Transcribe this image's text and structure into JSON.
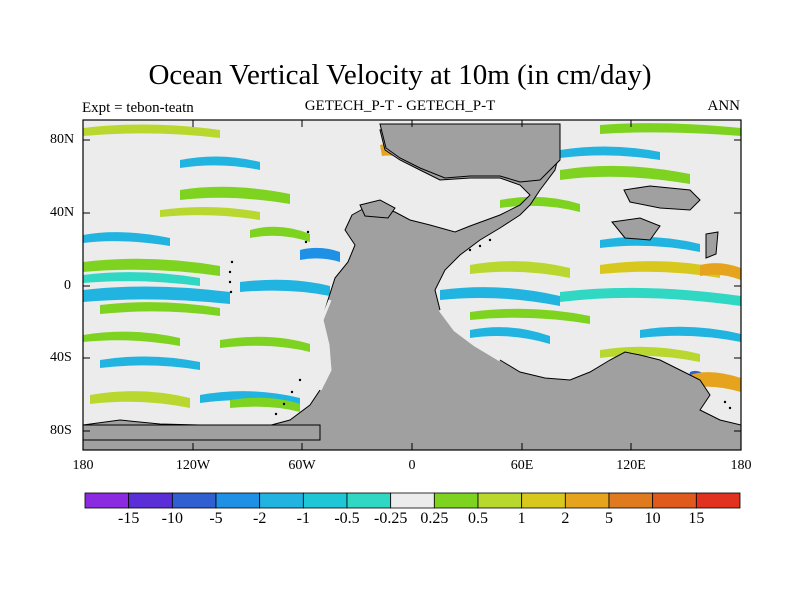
{
  "title": "Ocean Vertical Velocity at 10m (in cm/day)",
  "left_label": "Expt = tebon-teatn",
  "center_label": "GETECH_P-T - GETECH_P-T",
  "right_label": "ANN",
  "lat_ticks": [
    "80N",
    "40N",
    "0",
    "40S",
    "80S"
  ],
  "lon_ticks": [
    "180",
    "120W",
    "60W",
    "0",
    "60E",
    "120E",
    "180"
  ],
  "colorbar": {
    "labels": [
      "-15",
      "-10",
      "-5",
      "-2",
      "-1",
      "-0.5",
      "-0.25",
      "0.25",
      "0.5",
      "1",
      "2",
      "5",
      "10",
      "15"
    ],
    "colors": [
      "#8a2be2",
      "#5a2fd8",
      "#2f5fd0",
      "#1e90e6",
      "#21b4e0",
      "#1fc7d6",
      "#30d8c4",
      "#ececec",
      "#7ed321",
      "#b8d830",
      "#d8c81e",
      "#e6a41e",
      "#e07a1e",
      "#e05a1e",
      "#e0321e"
    ]
  },
  "land_color": "#a0a0a0",
  "ocean_neutral_color": "#ececec"
}
